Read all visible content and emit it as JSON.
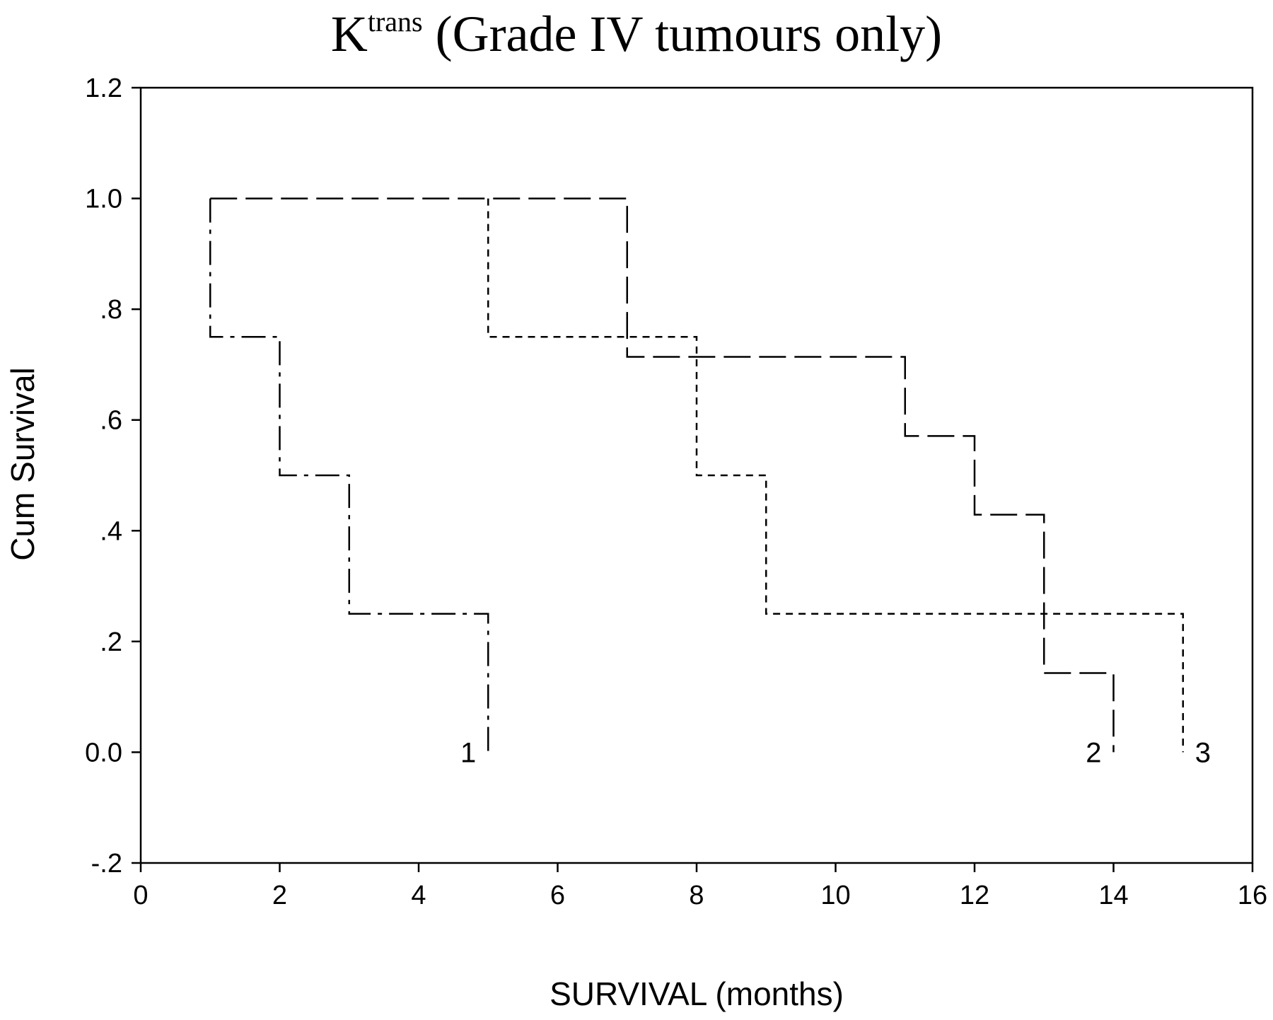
{
  "chart_data": {
    "type": "line",
    "title": {
      "base": "K",
      "superscript": "trans",
      "rest": " (Grade IV tumours only)"
    },
    "xlabel": "SURVIVAL (months)",
    "ylabel": "Cum Survival",
    "xlim": [
      0,
      16
    ],
    "ylim": [
      -0.2,
      1.2
    ],
    "xticks": [
      0,
      2,
      4,
      6,
      8,
      10,
      12,
      14,
      16
    ],
    "xtick_labels": [
      "0",
      "2",
      "4",
      "6",
      "8",
      "10",
      "12",
      "14",
      "16"
    ],
    "yticks": [
      -0.2,
      0.0,
      0.2,
      0.4,
      0.6,
      0.8,
      1.0,
      1.2
    ],
    "ytick_labels": [
      "-.2",
      "0.0",
      ".2",
      ".4",
      ".6",
      ".8",
      "1.0",
      "1.2"
    ],
    "grid": false,
    "series": [
      {
        "end_label": "1",
        "line_style": "dash-dot",
        "step": true,
        "x": [
          1,
          1,
          2,
          2,
          3,
          3,
          5,
          5
        ],
        "y": [
          1.0,
          0.75,
          0.75,
          0.5,
          0.5,
          0.25,
          0.25,
          0.0
        ]
      },
      {
        "end_label": "2",
        "line_style": "long-dash",
        "step": true,
        "x": [
          1,
          7,
          7,
          11,
          11,
          12,
          12,
          13,
          13,
          14,
          14
        ],
        "y": [
          1.0,
          1.0,
          0.714,
          0.714,
          0.571,
          0.571,
          0.429,
          0.429,
          0.143,
          0.143,
          0.0
        ]
      },
      {
        "end_label": "3",
        "line_style": "short-dash",
        "step": true,
        "x": [
          5,
          5,
          8,
          8,
          9,
          9,
          15,
          15
        ],
        "y": [
          1.0,
          0.75,
          0.75,
          0.5,
          0.5,
          0.25,
          0.25,
          0.0
        ]
      }
    ]
  }
}
